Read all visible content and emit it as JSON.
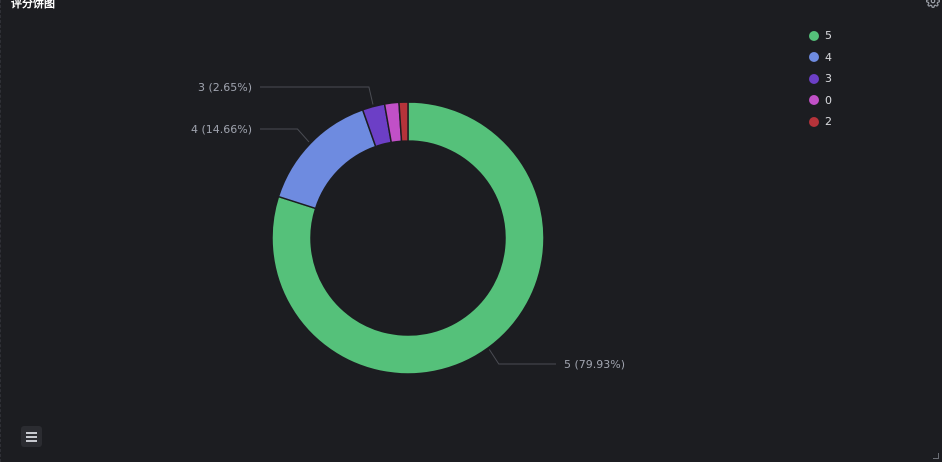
{
  "panel": {
    "title": "评分饼图"
  },
  "icons": {
    "settings": "gear-icon",
    "list": "list-icon"
  },
  "chart_data": {
    "type": "pie",
    "donut": true,
    "series": [
      {
        "name": "5",
        "value": 79.93,
        "color": "#55c17a",
        "label": "5 (79.93%)"
      },
      {
        "name": "4",
        "value": 14.66,
        "color": "#6e8be0",
        "label": "4 (14.66%)"
      },
      {
        "name": "3",
        "value": 2.65,
        "color": "#6c3fc6",
        "label": "3 (2.65%)"
      },
      {
        "name": "0",
        "value": 1.7,
        "color": "#c150c7",
        "label": ""
      },
      {
        "name": "2",
        "value": 1.06,
        "color": "#b5333a",
        "label": ""
      }
    ],
    "legend_placement": "top-right"
  }
}
